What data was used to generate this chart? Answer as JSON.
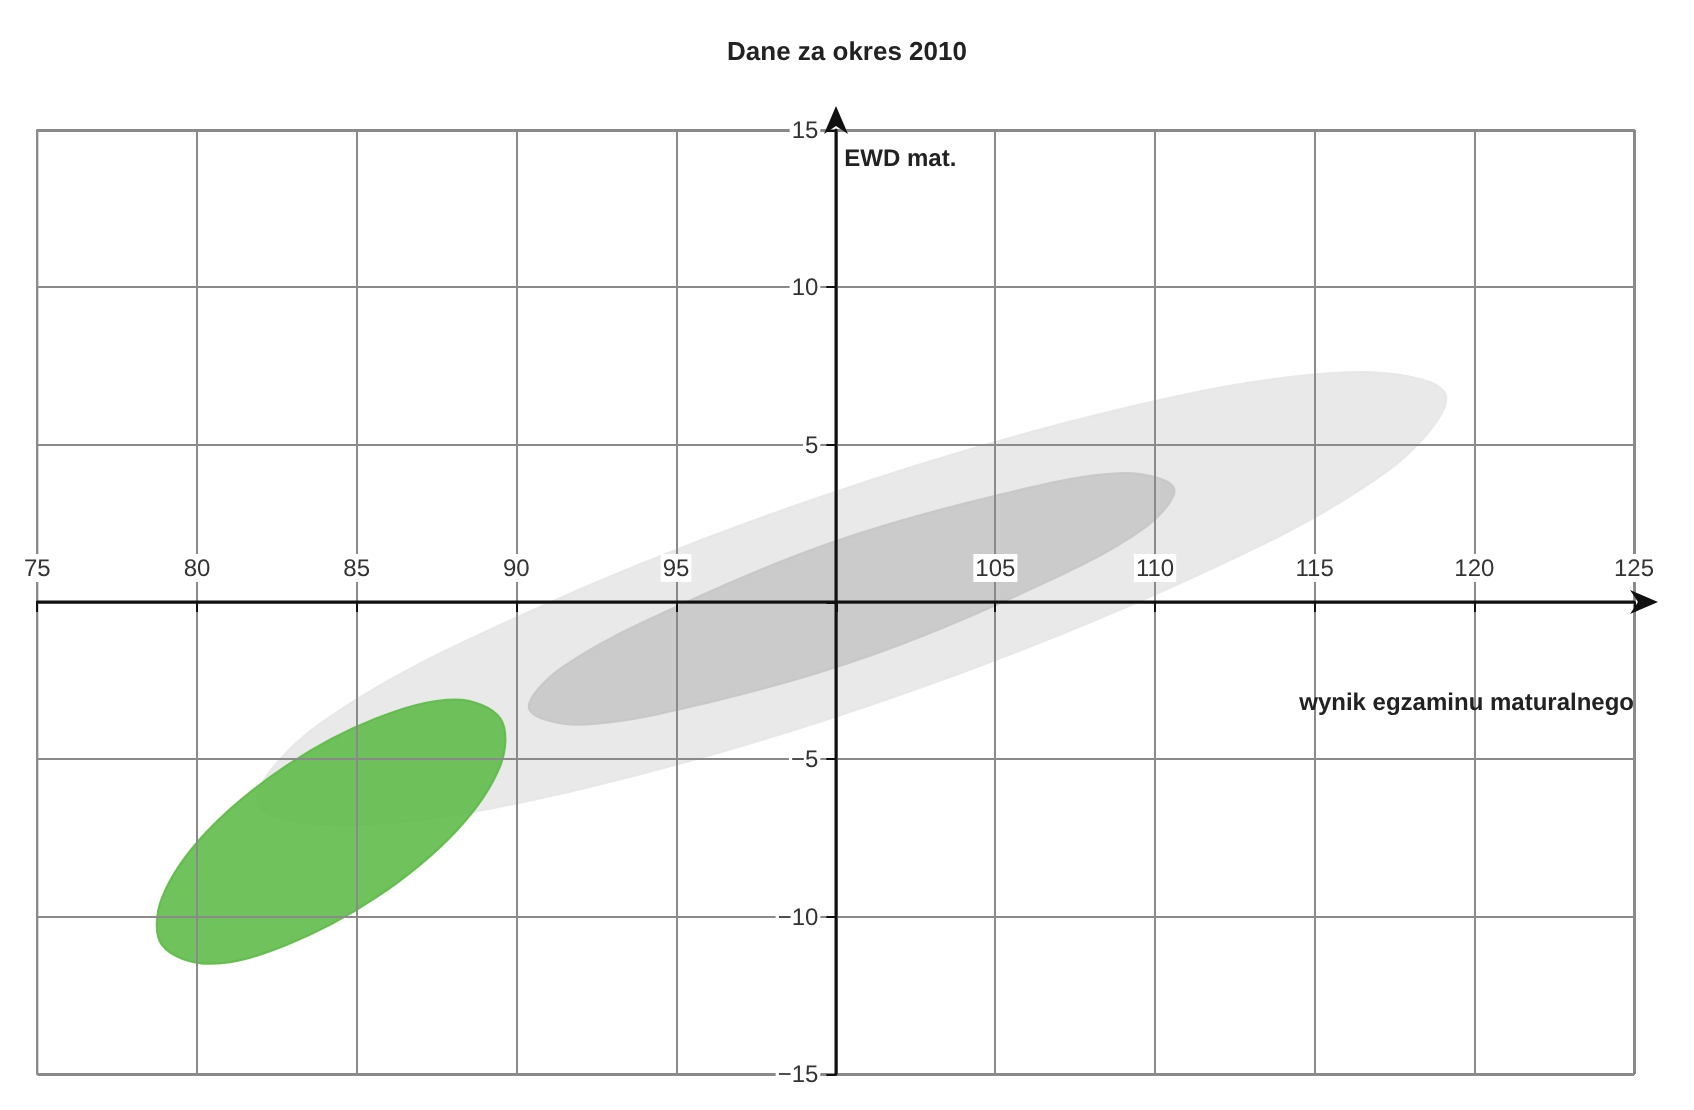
{
  "chart_data": {
    "type": "area",
    "title": "Dane za okres 2010",
    "xlabel": "wynik egzaminu maturalnego",
    "ylabel": "EWD mat.",
    "series": [
      {
        "color": "#e6e6e6",
        "x": [
          119.1,
          117.2,
          110.8,
          101.6,
          92.2,
          85.0,
          81.9,
          83.8,
          90.2,
          99.4,
          108.8,
          116.0
        ],
        "values": [
          6.6,
          4.1,
          0.6,
          -3.1,
          -5.9,
          -7.1,
          -6.4,
          -3.9,
          -0.4,
          3.3,
          6.1,
          7.3
        ]
      },
      {
        "color": "#c6c6c6",
        "x": [
          110.6,
          109.6,
          106.1,
          101.1,
          96.0,
          92.0,
          90.4,
          91.4,
          94.9,
          99.9,
          105.1,
          109.0
        ],
        "values": [
          3.6,
          2.3,
          0.4,
          -1.7,
          -3.2,
          -3.9,
          -3.4,
          -2.1,
          -0.2,
          1.9,
          3.4,
          4.1
        ]
      },
      {
        "color": "#5cb946",
        "x": [
          89.5,
          89.5,
          88.1,
          85.6,
          82.8,
          80.4,
          78.9,
          78.9,
          80.3,
          82.8,
          85.6,
          88.1
        ],
        "values": [
          -3.7,
          -5.2,
          -7.3,
          -9.4,
          -10.9,
          -11.5,
          -10.9,
          -9.4,
          -7.3,
          -5.2,
          -3.7,
          -3.1
        ]
      }
    ],
    "xlim": [
      75,
      125
    ],
    "ylim": [
      -15,
      15
    ],
    "xticks": [
      75,
      80,
      85,
      90,
      95,
      {
        "value": 100,
        "label": null
      },
      105,
      110,
      115,
      120,
      125
    ],
    "yticks": [
      {
        "value": -15,
        "label": "−15"
      },
      {
        "value": -10,
        "label": "−10"
      },
      {
        "value": -5,
        "label": "−5"
      },
      {
        "value": 0,
        "label": null
      },
      5,
      10,
      15
    ],
    "grid": true
  }
}
